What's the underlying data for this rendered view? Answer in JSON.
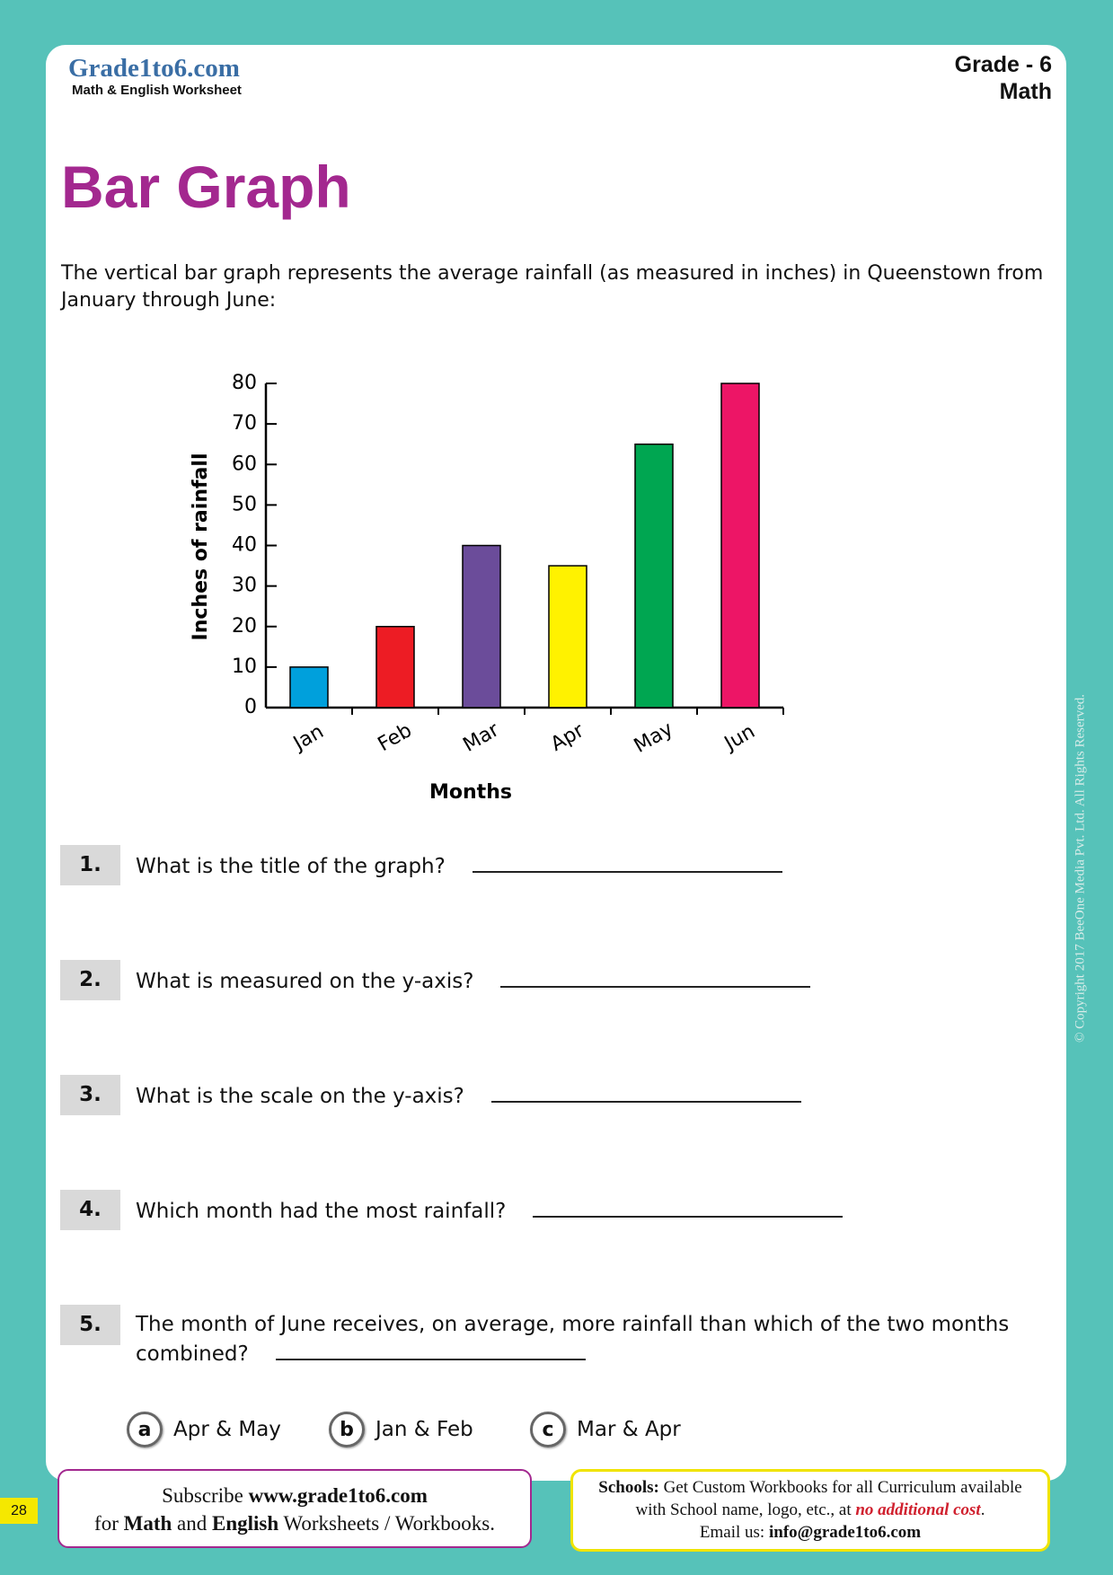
{
  "header": {
    "logo": "Grade1to6.com",
    "tagline": "Math & English Worksheet",
    "grade": "Grade - 6",
    "subject": "Math"
  },
  "title": "Bar Graph",
  "intro": "The vertical bar graph represents the average rainfall (as measured in inches) in Queenstown from January through June:",
  "chart_data": {
    "type": "bar",
    "xlabel": "Months",
    "ylabel": "Inches of rainfall",
    "categories": [
      "Jan",
      "Feb",
      "Mar",
      "Apr",
      "May",
      "Jun"
    ],
    "values": [
      10,
      20,
      40,
      35,
      65,
      80
    ],
    "colors": [
      "#00a0dc",
      "#ed1c24",
      "#6b4c9a",
      "#fff200",
      "#00a651",
      "#ed1566"
    ],
    "ylim": [
      0,
      80
    ],
    "yticks": [
      0,
      10,
      20,
      30,
      40,
      50,
      60,
      70,
      80
    ]
  },
  "questions": [
    {
      "number": "1.",
      "text": "What is the title of the graph?"
    },
    {
      "number": "2.",
      "text": "What is measured on the y-axis?"
    },
    {
      "number": "3.",
      "text": "What is the scale on the y-axis?"
    },
    {
      "number": "4.",
      "text": "Which month had the most rainfall?"
    },
    {
      "number": "5.",
      "text": "The month of June receives, on average, more rainfall than which of the two months combined?"
    }
  ],
  "options": [
    {
      "letter": "a",
      "text": "Apr & May"
    },
    {
      "letter": "b",
      "text": "Jan & Feb"
    },
    {
      "letter": "c",
      "text": "Mar & Apr"
    }
  ],
  "footer": {
    "subscribe": {
      "lead": "Subscribe",
      "site": "www.grade1to6.com",
      "for": "for",
      "math": "Math",
      "and": "and",
      "english": "English",
      "rest": "Worksheets / Workbooks."
    },
    "schools": {
      "label": "Schools:",
      "line1": "Get Custom Workbooks for all Curriculum available",
      "line2": "with School name, logo, etc., at",
      "offer": "no additional cost",
      "period": ".",
      "email_label": "Email us:",
      "email": "info@grade1to6.com"
    }
  },
  "copyright": "© Copyright 2017 BeeOne Media Pvt. Ltd. All Rights Reserved.",
  "page_number": "28"
}
